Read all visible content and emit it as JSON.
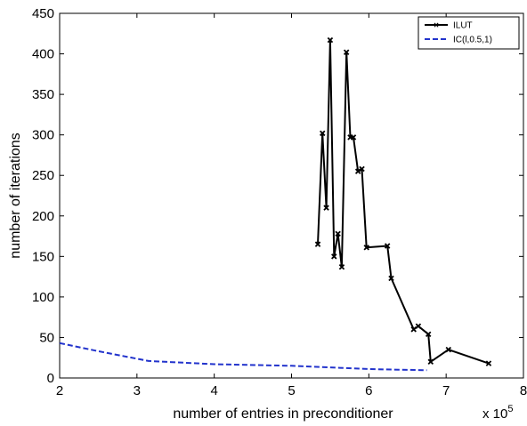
{
  "chart_data": {
    "type": "line",
    "xlabel": "number of entries in preconditioner",
    "ylabel": "number of iterations",
    "x_scale_note": {
      "base": "x 10",
      "exponent": "5"
    },
    "xlim": [
      2,
      8
    ],
    "ylim": [
      0,
      450
    ],
    "x_ticks": [
      2,
      3,
      4,
      5,
      6,
      7,
      8
    ],
    "y_ticks": [
      0,
      50,
      100,
      150,
      200,
      250,
      300,
      350,
      400,
      450
    ],
    "grid": false,
    "legend_position": "top-right",
    "series": [
      {
        "name": "ILUT",
        "color": "#000000",
        "style": "solid",
        "marker": "x",
        "x": [
          5.34,
          5.4,
          5.45,
          5.5,
          5.55,
          5.6,
          5.65,
          5.71,
          5.76,
          5.8,
          5.86,
          5.91,
          5.97,
          6.24,
          6.29,
          6.58,
          6.64,
          6.77,
          6.8,
          7.03,
          7.55
        ],
        "y": [
          165,
          302,
          210,
          417,
          150,
          178,
          137,
          402,
          297,
          297,
          255,
          258,
          161,
          163,
          123,
          60,
          64,
          54,
          20,
          35,
          18
        ]
      },
      {
        "name": "IC(l,0.5,1)",
        "color": "#2233cc",
        "style": "dashed",
        "marker": "none",
        "x": [
          2.0,
          2.5,
          3.15,
          4.0,
          5.0,
          6.0,
          6.75
        ],
        "y": [
          43,
          33,
          21,
          17,
          15,
          11,
          9.5
        ]
      }
    ]
  }
}
